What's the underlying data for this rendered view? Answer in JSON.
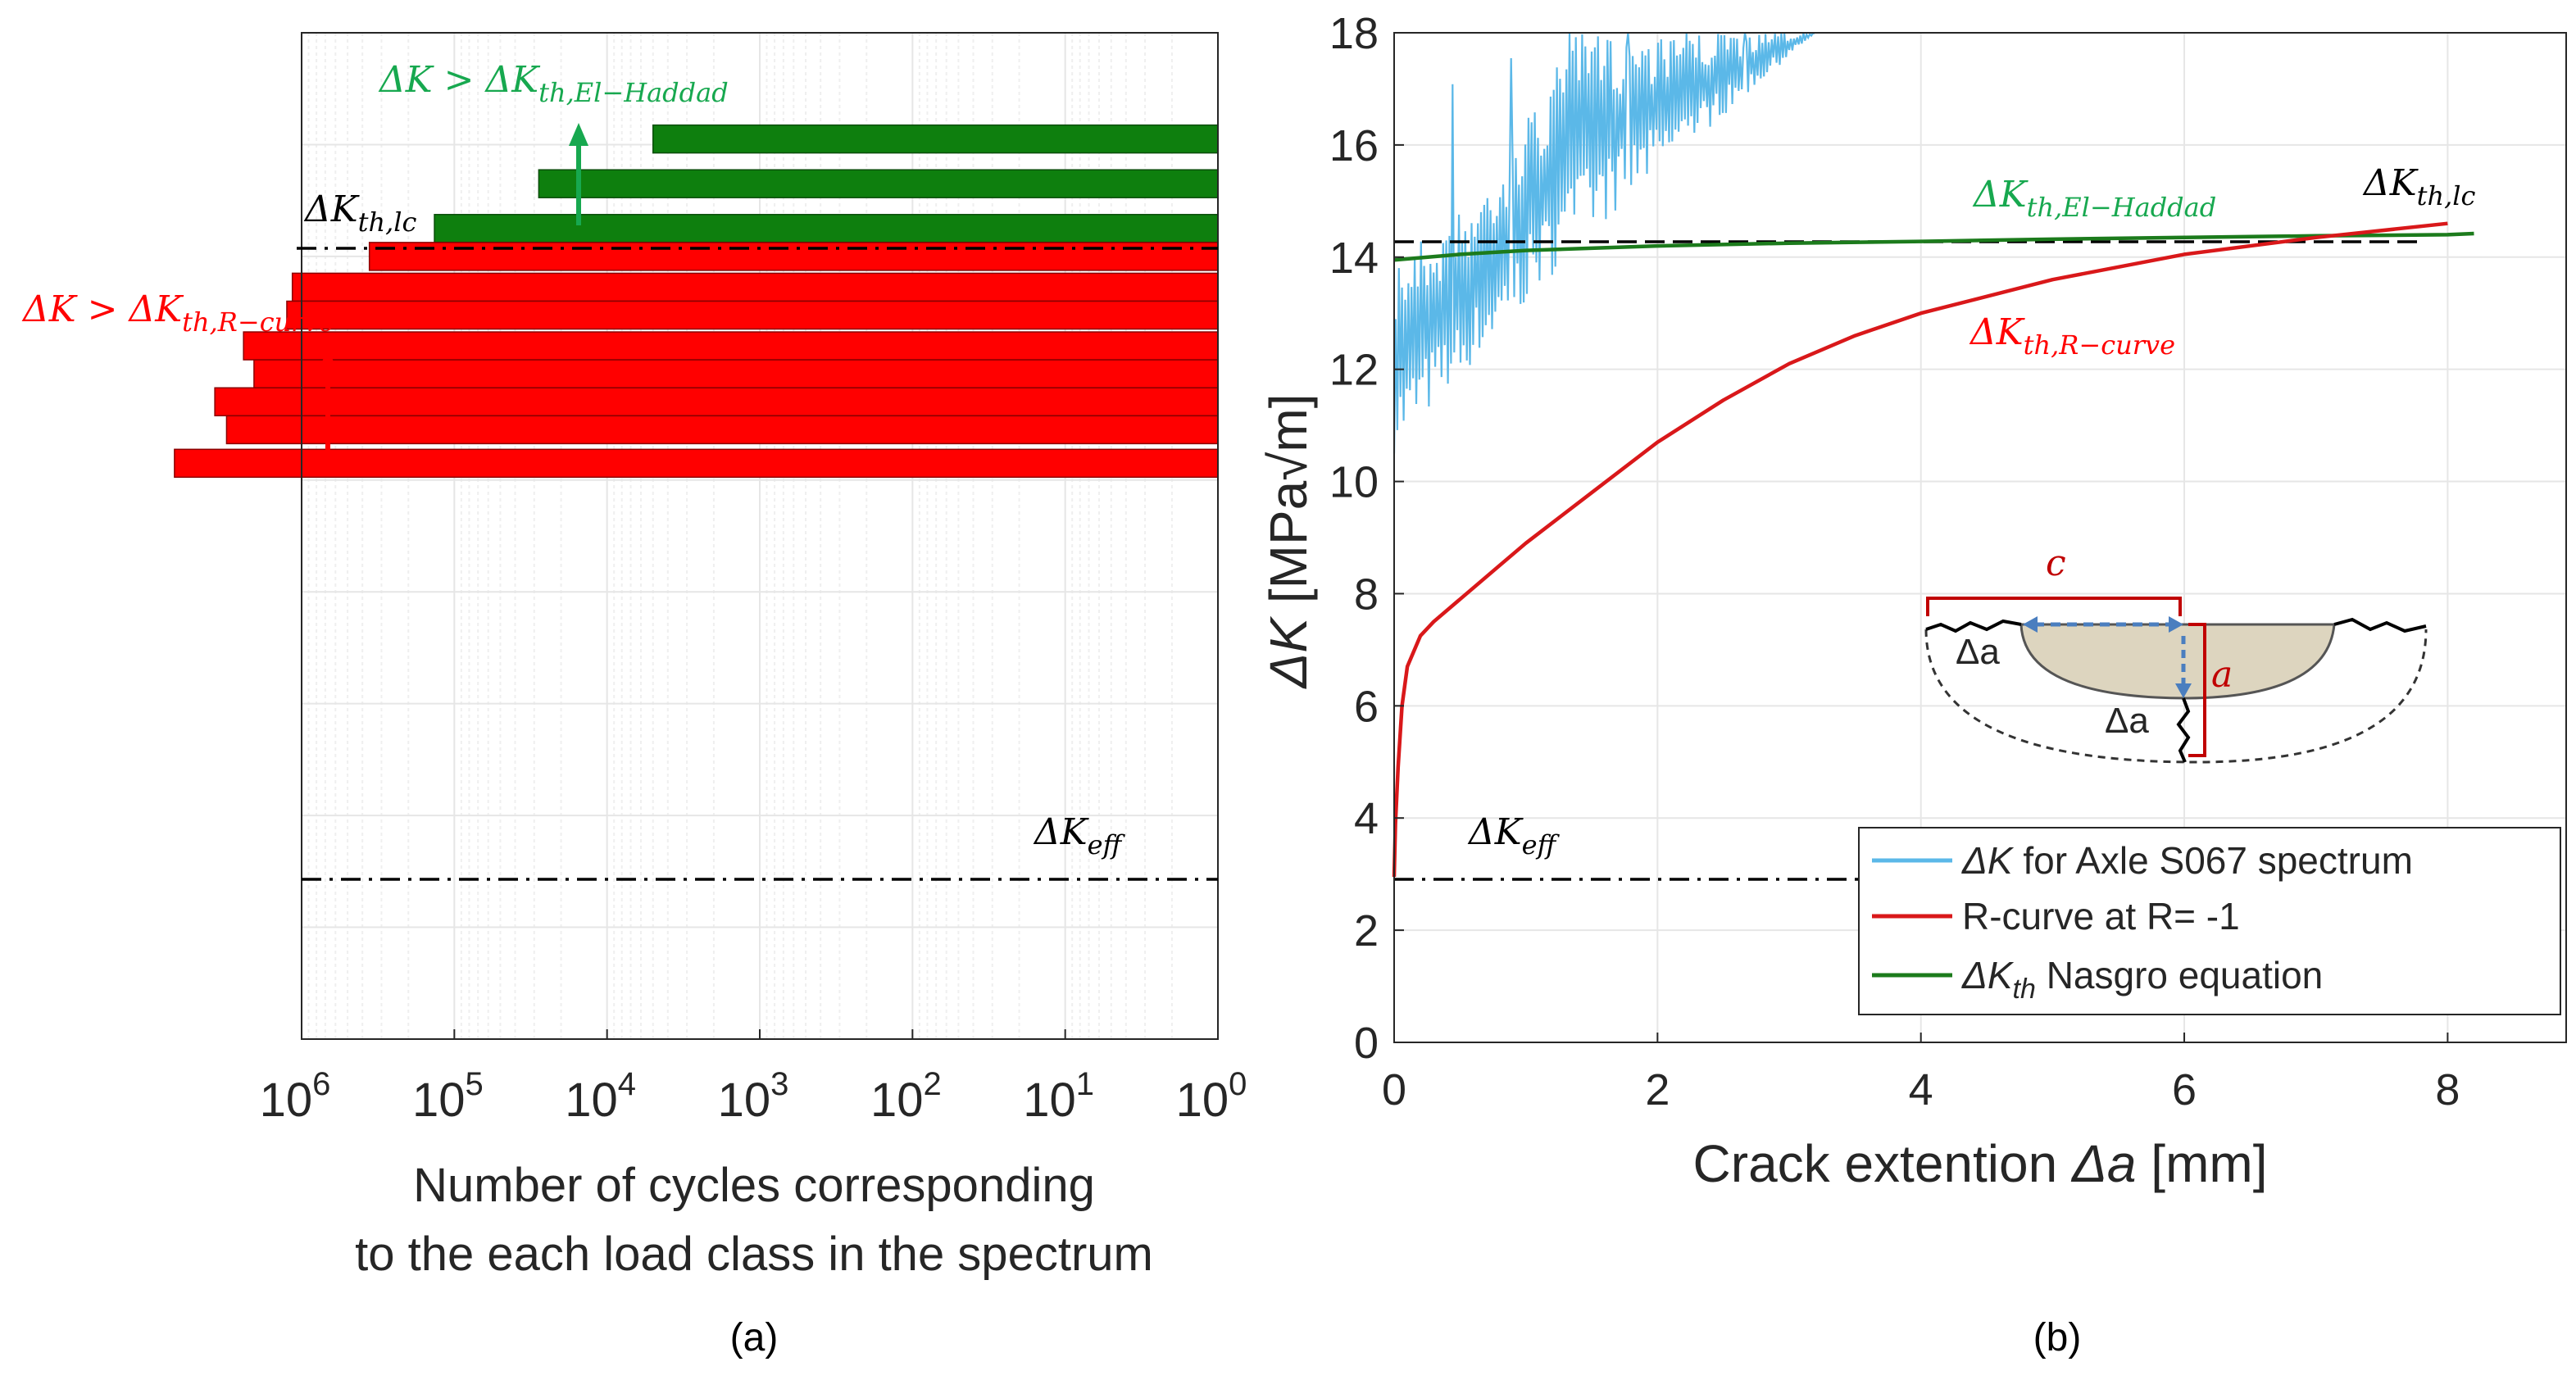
{
  "colors": {
    "red": "#ff0000",
    "red_line": "#d9181a",
    "green_bar": "#0e7f0e",
    "green_line": "#1c7b1c",
    "green_text": "#17a84f",
    "blue_line": "#5bb8e8",
    "grid": "#e6e6e6",
    "axis": "#262626"
  },
  "chart_data": [
    {
      "id": "a",
      "type": "bar",
      "orientation": "horizontal",
      "panel_caption": "(a)",
      "xlabel_lines": [
        "Number of cycles corresponding",
        "to the each load class in the spectrum"
      ],
      "x_scale": "log",
      "x_reversed": true,
      "xlim": [
        1,
        1000000
      ],
      "x_tick_values": [
        1000000,
        100000,
        10000,
        1000,
        100,
        10,
        1
      ],
      "x_tick_labels": [
        {
          "base": "10",
          "exp": "6"
        },
        {
          "base": "10",
          "exp": "5"
        },
        {
          "base": "10",
          "exp": "4"
        },
        {
          "base": "10",
          "exp": "3"
        },
        {
          "base": "10",
          "exp": "2"
        },
        {
          "base": "10",
          "exp": "1"
        },
        {
          "base": "10",
          "exp": "0"
        }
      ],
      "ylim": [
        0,
        18
      ],
      "grid": true,
      "green_bars": [
        {
          "level": 16.1,
          "cycles": 5000
        },
        {
          "level": 15.3,
          "cycles": 28000
        },
        {
          "level": 14.5,
          "cycles": 135000
        }
      ],
      "red_bars": [
        {
          "level": 14.0,
          "cycles": 360000
        },
        {
          "level": 13.45,
          "cycles": 1150000
        },
        {
          "level": 12.95,
          "cycles": 1250000
        },
        {
          "level": 12.4,
          "cycles": 2400000
        },
        {
          "level": 11.9,
          "cycles": 2050000
        },
        {
          "level": 11.4,
          "cycles": 3700000
        },
        {
          "level": 10.9,
          "cycles": 3100000
        },
        {
          "level": 10.3,
          "cycles": 6800000
        }
      ],
      "reference_lines": [
        {
          "name": "dK_th_lc",
          "value": 14.2
        },
        {
          "name": "dK_eff",
          "value": 2.95
        }
      ],
      "annotations": {
        "el_haddad": {
          "prefix": "ΔK > ΔK",
          "sub": "th,El−Haddad"
        },
        "r_curve": {
          "prefix": "ΔK > ΔK",
          "sub": "th,R−curve"
        },
        "th_lc": {
          "prefix": "ΔK",
          "sub": "th,lc"
        },
        "eff": {
          "prefix": "ΔK",
          "sub": "eff"
        }
      }
    },
    {
      "id": "b",
      "type": "line",
      "panel_caption": "(b)",
      "xlabel": "Crack extention",
      "xlabel_symbol": "Δa",
      "xlabel_unit": "[mm]",
      "ylabel_symbol": "ΔK",
      "ylabel_unit": "[MPa√m]",
      "xlim": [
        0,
        8.9
      ],
      "ylim": [
        0,
        18
      ],
      "x_ticks": [
        0,
        2,
        4,
        6,
        8
      ],
      "y_ticks": [
        0,
        2,
        4,
        6,
        8,
        10,
        12,
        14,
        16,
        18
      ],
      "grid": true,
      "series": [
        {
          "name": "dK_spectrum",
          "legend_symbol": "ΔK",
          "legend_text": "for Axle S067 spectrum",
          "style": "oscillating band",
          "lower_envelope": {
            "x": [
              0,
              1.4,
              3.2
            ],
            "y": [
              10.5,
              14.2,
              18
            ]
          },
          "upper_envelope": {
            "x": [
              0,
              0.6,
              1.4,
              3.2
            ],
            "y": [
              14.0,
              15.0,
              18,
              18
            ]
          }
        },
        {
          "name": "r_curve",
          "legend_text": "R-curve at R= -1",
          "x": [
            0,
            0.01,
            0.03,
            0.06,
            0.1,
            0.2,
            0.3,
            0.5,
            0.8,
            1.0,
            1.5,
            2.0,
            2.5,
            3.0,
            3.5,
            4.0,
            5.0,
            6.0,
            7.0,
            8.0
          ],
          "y": [
            2.95,
            3.9,
            4.9,
            6.0,
            6.7,
            7.25,
            7.5,
            7.9,
            8.5,
            8.9,
            9.8,
            10.7,
            11.45,
            12.1,
            12.6,
            13.0,
            13.6,
            14.05,
            14.35,
            14.6
          ]
        },
        {
          "name": "nasgro",
          "legend_symbol": "ΔK",
          "legend_sub": "th",
          "legend_text": "Nasgro equation",
          "x": [
            0,
            0.5,
            1,
            2,
            3,
            4,
            5,
            6,
            7,
            8,
            8.2
          ],
          "y": [
            13.95,
            14.05,
            14.12,
            14.2,
            14.25,
            14.28,
            14.32,
            14.35,
            14.38,
            14.4,
            14.42
          ]
        }
      ],
      "reference_lines": [
        {
          "name": "dK_th_lc",
          "value": 14.3
        },
        {
          "name": "dK_eff",
          "value": 2.95
        }
      ],
      "annotations": {
        "el_haddad": {
          "prefix": "ΔK",
          "sub": "th,El−Haddad"
        },
        "th_lc": {
          "prefix": "ΔK",
          "sub": "th,lc"
        },
        "r_curve": {
          "prefix": "ΔK",
          "sub": "th,R−curve"
        },
        "eff": {
          "prefix": "ΔK",
          "sub": "eff"
        }
      },
      "inset": {
        "c_label": "c",
        "a_label": "a",
        "da_label": "Δa"
      }
    }
  ]
}
